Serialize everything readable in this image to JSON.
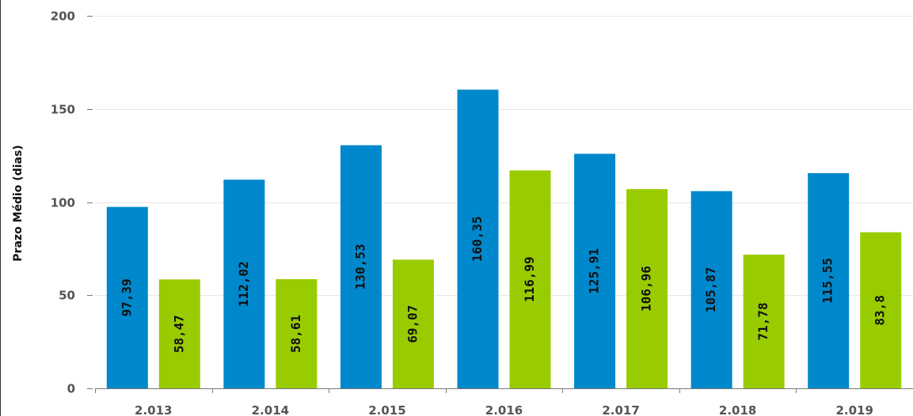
{
  "chart_data": {
    "type": "bar",
    "categories": [
      "2.013",
      "2.014",
      "2.015",
      "2.016",
      "2.017",
      "2.018",
      "2.019"
    ],
    "series": [
      {
        "color": "#0088cc",
        "values": [
          97.39,
          112.02,
          130.53,
          160.35,
          125.91,
          105.87,
          115.55
        ],
        "labels": [
          "97,39",
          "112,02",
          "130,53",
          "160,35",
          "125,91",
          "105,87",
          "115,55"
        ]
      },
      {
        "color": "#99cc00",
        "values": [
          58.47,
          58.61,
          69.07,
          116.99,
          106.96,
          71.78,
          83.8
        ],
        "labels": [
          "58,47",
          "58,61",
          "69,07",
          "116,99",
          "106,96",
          "71,78",
          "83,8"
        ]
      }
    ],
    "ylabel": "Prazo Médio (dias)",
    "ylim": [
      0,
      200
    ],
    "yticks": [
      0,
      50,
      100,
      150,
      200
    ],
    "ytick_labels": [
      "0",
      "50",
      "100",
      "150",
      "200"
    ],
    "grid": true,
    "legend": "none"
  }
}
